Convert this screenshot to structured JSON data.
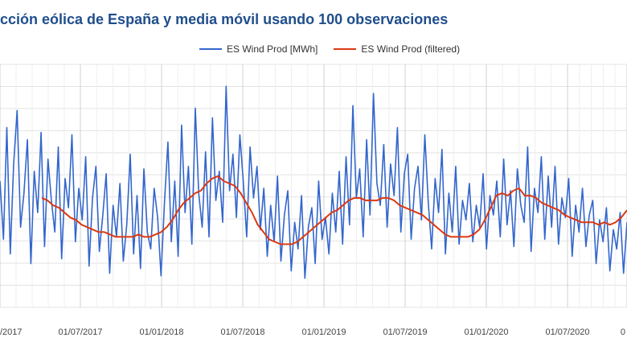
{
  "title": "cción eólica de España y media móvil usando 100 observaciones",
  "legend": [
    {
      "label": "ES Wind Prod [MWh]",
      "color": "#3366cc"
    },
    {
      "label": "ES Wind Prod (filtered)",
      "color": "#dc3912"
    }
  ],
  "chart_data": {
    "type": "line",
    "title": "cción eólica de España y media móvil usando 100 observaciones",
    "xlabel": "",
    "ylabel": "",
    "x_tick_labels": [
      "/2017",
      "01/07/2017",
      "01/01/2018",
      "01/07/2018",
      "01/01/2019",
      "01/07/2019",
      "01/01/2020",
      "01/07/2020",
      "0"
    ],
    "ylim": [
      0,
      1
    ],
    "series": [
      {
        "name": "ES Wind Prod [MWh]",
        "color": "#3366cc",
        "values": [
          0.52,
          0.28,
          0.74,
          0.22,
          0.59,
          0.81,
          0.33,
          0.47,
          0.69,
          0.18,
          0.56,
          0.39,
          0.72,
          0.25,
          0.61,
          0.44,
          0.31,
          0.66,
          0.2,
          0.53,
          0.41,
          0.71,
          0.27,
          0.49,
          0.36,
          0.62,
          0.17,
          0.45,
          0.58,
          0.23,
          0.38,
          0.55,
          0.14,
          0.42,
          0.29,
          0.51,
          0.19,
          0.34,
          0.63,
          0.22,
          0.46,
          0.16,
          0.57,
          0.31,
          0.24,
          0.49,
          0.37,
          0.13,
          0.43,
          0.68,
          0.27,
          0.52,
          0.21,
          0.75,
          0.39,
          0.58,
          0.26,
          0.82,
          0.47,
          0.33,
          0.64,
          0.29,
          0.78,
          0.44,
          0.56,
          0.35,
          0.91,
          0.48,
          0.63,
          0.37,
          0.71,
          0.52,
          0.29,
          0.66,
          0.45,
          0.58,
          0.32,
          0.49,
          0.21,
          0.42,
          0.27,
          0.54,
          0.19,
          0.38,
          0.48,
          0.15,
          0.35,
          0.24,
          0.46,
          0.12,
          0.33,
          0.41,
          0.18,
          0.52,
          0.28,
          0.37,
          0.22,
          0.47,
          0.31,
          0.56,
          0.26,
          0.62,
          0.34,
          0.83,
          0.45,
          0.57,
          0.29,
          0.69,
          0.38,
          0.88,
          0.51,
          0.42,
          0.67,
          0.33,
          0.59,
          0.46,
          0.74,
          0.31,
          0.55,
          0.63,
          0.28,
          0.49,
          0.58,
          0.36,
          0.71,
          0.43,
          0.24,
          0.53,
          0.39,
          0.65,
          0.22,
          0.47,
          0.31,
          0.58,
          0.26,
          0.44,
          0.36,
          0.51,
          0.27,
          0.42,
          0.33,
          0.55,
          0.24,
          0.46,
          0.38,
          0.52,
          0.29,
          0.61,
          0.34,
          0.48,
          0.25,
          0.57,
          0.42,
          0.35,
          0.66,
          0.23,
          0.49,
          0.39,
          0.62,
          0.28,
          0.54,
          0.33,
          0.58,
          0.26,
          0.45,
          0.37,
          0.53,
          0.21,
          0.42,
          0.31,
          0.49,
          0.25,
          0.38,
          0.44,
          0.18,
          0.36,
          0.27,
          0.41,
          0.15,
          0.32,
          0.24,
          0.39,
          0.14,
          0.35
        ],
        "style": "thin jagged line"
      },
      {
        "name": "ES Wind Prod (filtered)",
        "color": "#dc3912",
        "values": [
          0.45,
          0.44,
          0.42,
          0.41,
          0.39,
          0.37,
          0.36,
          0.34,
          0.33,
          0.32,
          0.31,
          0.31,
          0.3,
          0.29,
          0.29,
          0.29,
          0.29,
          0.3,
          0.29,
          0.29,
          0.3,
          0.31,
          0.33,
          0.36,
          0.4,
          0.43,
          0.45,
          0.47,
          0.48,
          0.51,
          0.53,
          0.54,
          0.52,
          0.51,
          0.5,
          0.47,
          0.43,
          0.39,
          0.34,
          0.31,
          0.28,
          0.27,
          0.26,
          0.26,
          0.26,
          0.27,
          0.29,
          0.31,
          0.33,
          0.35,
          0.37,
          0.39,
          0.4,
          0.42,
          0.44,
          0.45,
          0.45,
          0.44,
          0.44,
          0.44,
          0.45,
          0.45,
          0.44,
          0.42,
          0.41,
          0.4,
          0.39,
          0.38,
          0.36,
          0.34,
          0.32,
          0.3,
          0.29,
          0.29,
          0.29,
          0.29,
          0.3,
          0.32,
          0.36,
          0.41,
          0.46,
          0.47,
          0.46,
          0.48,
          0.49,
          0.46,
          0.46,
          0.45,
          0.43,
          0.42,
          0.41,
          0.4,
          0.38,
          0.37,
          0.36,
          0.35,
          0.35,
          0.35,
          0.34,
          0.35,
          0.34,
          0.35,
          0.37,
          0.4
        ]
      }
    ]
  }
}
